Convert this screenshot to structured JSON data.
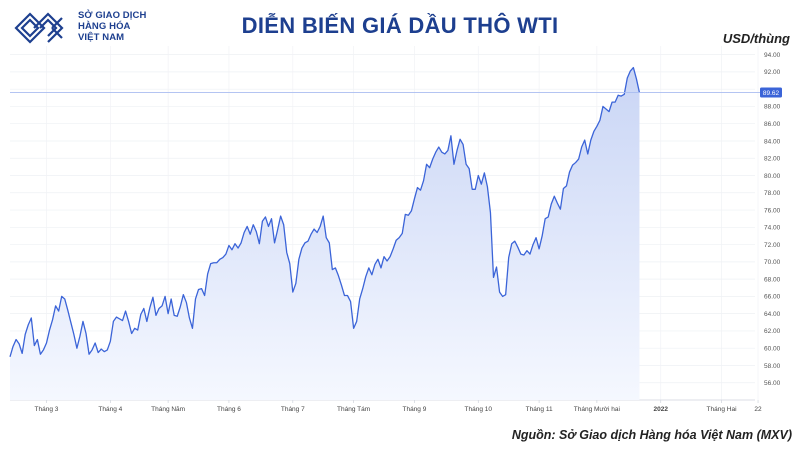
{
  "logo": {
    "line1": "SỞ GIAO DỊCH",
    "line2": "HÀNG HÓA",
    "line3": "VIỆT NAM"
  },
  "unit_label": "USD/thùng",
  "source": "Nguồn: Sở Giao dịch Hàng hóa Việt Nam (MXV)",
  "colors": {
    "brand": "#1d3f8f",
    "line": "#3b64d8",
    "fill_top": "#c9d5f5",
    "fill_bottom": "#f5f8ff",
    "last_price": "#3b64d8"
  },
  "chart_data": {
    "type": "area",
    "title": "DIỄN BIẾN GIÁ DẦU THÔ WTI",
    "ylabel": "USD/thùng",
    "ylim": [
      54,
      95
    ],
    "yticks": [
      56,
      58,
      60,
      62,
      64,
      66,
      68,
      70,
      72,
      74,
      76,
      78,
      80,
      82,
      84,
      86,
      88,
      90,
      92,
      94
    ],
    "ytick_labels": [
      "56.00",
      "58.00",
      "60.00",
      "62.00",
      "64.00",
      "66.00",
      "68.00",
      "70.00",
      "72.00",
      "74.00",
      "76.00",
      "78.00",
      "80.00",
      "82.00",
      "84.00",
      "86.00",
      "88.00",
      "90.00",
      "92.00",
      "94.00"
    ],
    "x_range": [
      0,
      245
    ],
    "xticks": [
      {
        "x": 12,
        "label": "Tháng 3",
        "bold": false
      },
      {
        "x": 33,
        "label": "Tháng 4",
        "bold": false
      },
      {
        "x": 52,
        "label": "Tháng Năm",
        "bold": false
      },
      {
        "x": 72,
        "label": "Tháng 6",
        "bold": false
      },
      {
        "x": 93,
        "label": "Tháng 7",
        "bold": false
      },
      {
        "x": 113,
        "label": "Tháng Tám",
        "bold": false
      },
      {
        "x": 133,
        "label": "Tháng 9",
        "bold": false
      },
      {
        "x": 154,
        "label": "Tháng 10",
        "bold": false
      },
      {
        "x": 174,
        "label": "Tháng 11",
        "bold": false
      },
      {
        "x": 193,
        "label": "Tháng Mười hai",
        "bold": false
      },
      {
        "x": 214,
        "label": "2022",
        "bold": true
      },
      {
        "x": 234,
        "label": "Tháng Hai",
        "bold": false
      },
      {
        "x": 246,
        "label": "22",
        "bold": false
      }
    ],
    "last_price": 89.62,
    "last_price_label": "89.62",
    "series": [
      {
        "values": [
          59.0,
          60.2,
          61.0,
          60.5,
          59.4,
          61.6,
          62.7,
          63.5,
          60.3,
          61.0,
          59.3,
          59.8,
          60.6,
          62.1,
          63.3,
          64.9,
          64.3,
          66.0,
          65.7,
          64.4,
          63.0,
          61.6,
          60.0,
          61.4,
          63.1,
          61.7,
          59.3,
          59.8,
          60.6,
          59.5,
          59.9,
          59.6,
          59.8,
          60.8,
          63.1,
          63.6,
          63.4,
          63.2,
          64.3,
          63.1,
          61.7,
          62.3,
          62.1,
          63.9,
          64.6,
          63.1,
          64.7,
          65.9,
          63.8,
          64.6,
          64.9,
          66.0,
          64.0,
          65.7,
          63.8,
          63.7,
          64.8,
          66.2,
          65.3,
          63.5,
          62.3,
          65.7,
          66.8,
          66.9,
          66.1,
          68.6,
          69.8,
          69.9,
          69.9,
          70.3,
          70.5,
          70.9,
          71.9,
          71.4,
          72.1,
          71.6,
          72.2,
          73.4,
          74.1,
          73.2,
          74.3,
          73.5,
          72.1,
          74.7,
          75.2,
          74.1,
          75.0,
          72.2,
          73.7,
          75.3,
          74.3,
          71.1,
          69.8,
          66.5,
          67.5,
          70.3,
          71.6,
          72.2,
          72.4,
          73.2,
          73.8,
          73.4,
          74.1,
          75.3,
          72.8,
          72.2,
          69.1,
          69.3,
          68.4,
          67.3,
          66.1,
          66.1,
          65.4,
          62.3,
          63.1,
          65.7,
          66.9,
          68.3,
          69.3,
          68.5,
          69.7,
          70.3,
          69.3,
          70.6,
          70.1,
          70.6,
          71.5,
          72.5,
          72.8,
          73.3,
          75.5,
          75.4,
          75.9,
          77.3,
          78.6,
          78.3,
          79.4,
          81.3,
          80.9,
          81.9,
          82.7,
          83.3,
          82.7,
          82.5,
          82.9,
          84.6,
          81.3,
          82.9,
          84.2,
          83.6,
          81.3,
          80.8,
          78.4,
          78.4,
          80.0,
          79.0,
          80.3,
          78.7,
          75.7,
          68.2,
          69.4,
          66.5,
          66.0,
          66.2,
          70.5,
          72.1,
          72.4,
          71.7,
          70.9,
          70.8,
          71.3,
          70.9,
          72.0,
          72.8,
          71.5,
          73.0,
          75.0,
          75.2,
          76.7,
          77.6,
          76.8,
          76.1,
          78.5,
          78.8,
          80.4,
          81.2,
          81.5,
          81.9,
          83.3,
          84.1,
          82.5,
          84.1,
          85.1,
          85.7,
          86.4,
          88.0,
          87.7,
          87.4,
          88.5,
          88.5,
          89.3,
          89.2,
          89.4,
          91.3,
          92.1,
          92.5,
          91.2,
          89.6
        ]
      }
    ]
  }
}
